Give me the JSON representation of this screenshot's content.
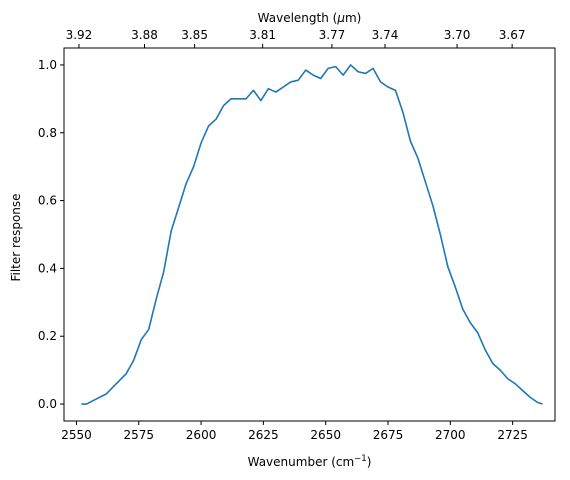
{
  "chart_data": {
    "type": "line",
    "xlabel": "Wavenumber (cm",
    "xlabel_superscript": "−1",
    "xlabel_suffix": ")",
    "ylabel": "Filter response",
    "top_xlabel_prefix": "Wavelength (",
    "top_xlabel_mu": "μ",
    "top_xlabel_suffix": "m)",
    "xlim": [
      2545,
      2742
    ],
    "ylim": [
      -0.05,
      1.05
    ],
    "xticks": [
      2550,
      2575,
      2600,
      2625,
      2650,
      2675,
      2700,
      2725
    ],
    "yticks": [
      0.0,
      0.2,
      0.4,
      0.6,
      0.8,
      1.0
    ],
    "ytick_labels": [
      "0.0",
      "0.2",
      "0.4",
      "0.6",
      "0.8",
      "1.0"
    ],
    "top_ticks": [
      {
        "label": "3.92",
        "wavenumber": 2551.0
      },
      {
        "label": "3.88",
        "wavenumber": 2577.3
      },
      {
        "label": "3.85",
        "wavenumber": 2597.4
      },
      {
        "label": "3.81",
        "wavenumber": 2624.7
      },
      {
        "label": "3.77",
        "wavenumber": 2652.5
      },
      {
        "label": "3.74",
        "wavenumber": 2673.8
      },
      {
        "label": "3.70",
        "wavenumber": 2702.7
      },
      {
        "label": "3.67",
        "wavenumber": 2724.8
      }
    ],
    "line_color": "#1f77b4",
    "grid": false,
    "series": [
      {
        "x": [
          2552,
          2554,
          2558,
          2562,
          2566,
          2570,
          2573,
          2576,
          2579,
          2582,
          2585,
          2588,
          2591,
          2594,
          2597,
          2600,
          2603,
          2606,
          2609,
          2612,
          2615,
          2618,
          2621,
          2624,
          2627,
          2630,
          2633,
          2636,
          2639,
          2642,
          2645,
          2648,
          2651,
          2654,
          2657,
          2660,
          2663,
          2666,
          2669,
          2672,
          2675,
          2678,
          2681,
          2684,
          2687,
          2690,
          2693,
          2696,
          2699,
          2702,
          2705,
          2708,
          2711,
          2714,
          2717,
          2720,
          2723,
          2726,
          2729,
          2732,
          2735,
          2737
        ],
        "y": [
          0.0,
          0.0,
          0.015,
          0.03,
          0.06,
          0.09,
          0.13,
          0.19,
          0.22,
          0.31,
          0.39,
          0.51,
          0.58,
          0.65,
          0.7,
          0.77,
          0.82,
          0.84,
          0.88,
          0.9,
          0.9,
          0.9,
          0.925,
          0.895,
          0.93,
          0.92,
          0.935,
          0.95,
          0.955,
          0.985,
          0.97,
          0.96,
          0.99,
          0.995,
          0.97,
          1.0,
          0.98,
          0.975,
          0.99,
          0.95,
          0.935,
          0.925,
          0.86,
          0.775,
          0.725,
          0.655,
          0.585,
          0.5,
          0.405,
          0.345,
          0.28,
          0.24,
          0.21,
          0.16,
          0.12,
          0.1,
          0.075,
          0.06,
          0.04,
          0.02,
          0.005,
          0.0
        ]
      }
    ]
  }
}
